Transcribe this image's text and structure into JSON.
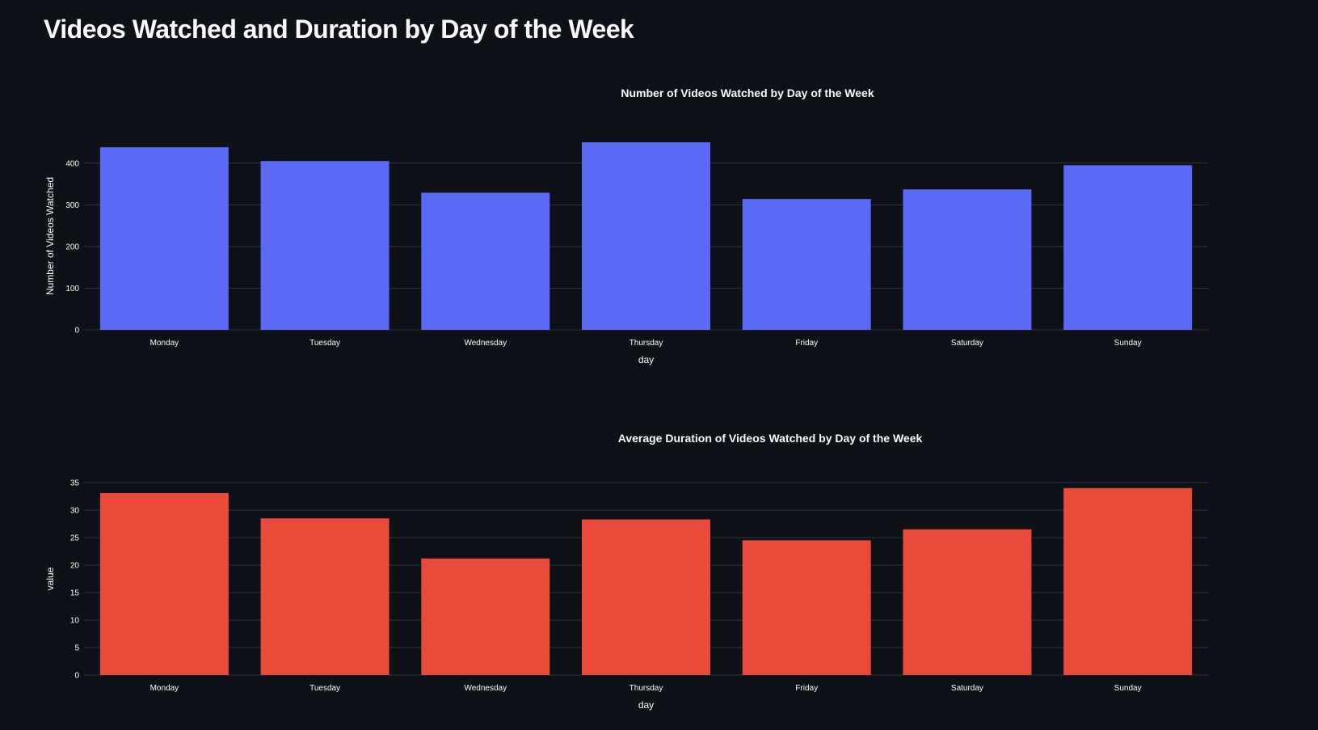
{
  "page": {
    "title": "Videos Watched and Duration by Day of the Week"
  },
  "chart_data": [
    {
      "type": "bar",
      "title": "Number of Videos Watched by Day of the Week",
      "xlabel": "day",
      "ylabel": "Number of Videos Watched",
      "categories": [
        "Monday",
        "Tuesday",
        "Wednesday",
        "Thursday",
        "Friday",
        "Saturday",
        "Sunday"
      ],
      "values": [
        438,
        405,
        329,
        450,
        314,
        337,
        395
      ],
      "ylim": [
        0,
        450
      ],
      "yticks": [
        0,
        100,
        200,
        300,
        400
      ],
      "color": "#5b6af5",
      "grid": true
    },
    {
      "type": "bar",
      "title": "Average Duration of Videos Watched by Day of the Week",
      "xlabel": "day",
      "ylabel": "value",
      "categories": [
        "Monday",
        "Tuesday",
        "Wednesday",
        "Thursday",
        "Friday",
        "Saturday",
        "Sunday"
      ],
      "values": [
        33.1,
        28.5,
        21.2,
        28.3,
        24.5,
        26.5,
        34.0
      ],
      "ylim": [
        0,
        35
      ],
      "yticks": [
        0,
        5,
        10,
        15,
        20,
        25,
        30,
        35
      ],
      "color": "#ea4a3a",
      "grid": true
    }
  ]
}
